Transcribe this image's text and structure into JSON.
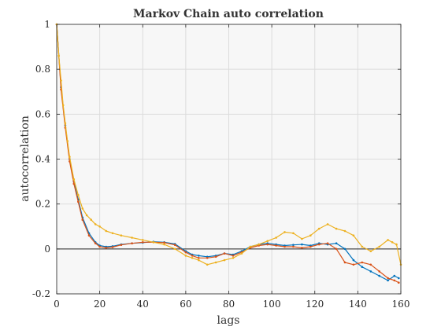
{
  "chart_data": {
    "type": "line",
    "title": "Markov Chain auto correlation",
    "xlabel": "lags",
    "ylabel": "autocorrelation",
    "xlim": [
      0,
      160
    ],
    "ylim": [
      -0.2,
      1
    ],
    "xticks": [
      0,
      20,
      40,
      60,
      80,
      100,
      120,
      140,
      160
    ],
    "yticks": [
      -0.2,
      0,
      0.2,
      0.4,
      0.6,
      0.8,
      1
    ],
    "ytick_labels": [
      "-0.2",
      "0",
      "0.2",
      "0.4",
      "0.6",
      "0.8",
      "1"
    ],
    "grid": true,
    "zero_line": true,
    "series": [
      {
        "color": "#0072BD",
        "x": [
          0,
          2,
          4,
          6,
          8,
          10,
          12,
          15,
          18,
          20,
          23,
          26,
          30,
          35,
          40,
          45,
          50,
          55,
          60,
          63,
          66,
          70,
          74,
          78,
          82,
          86,
          90,
          94,
          98,
          102,
          106,
          110,
          114,
          118,
          122,
          126,
          130,
          134,
          138,
          142,
          146,
          150,
          154,
          157,
          159
        ],
        "y": [
          1,
          0.72,
          0.55,
          0.4,
          0.3,
          0.22,
          0.14,
          0.07,
          0.03,
          0.015,
          0.01,
          0.012,
          0.02,
          0.025,
          0.028,
          0.032,
          0.03,
          0.022,
          -0.01,
          -0.025,
          -0.03,
          -0.035,
          -0.03,
          -0.02,
          -0.025,
          -0.01,
          0.01,
          0.02,
          0.025,
          0.02,
          0.015,
          0.018,
          0.02,
          0.015,
          0.025,
          0.02,
          0.025,
          0.0,
          -0.05,
          -0.08,
          -0.1,
          -0.12,
          -0.14,
          -0.12,
          -0.13
        ]
      },
      {
        "color": "#D95319",
        "x": [
          0,
          2,
          4,
          6,
          8,
          10,
          12,
          15,
          18,
          20,
          23,
          26,
          30,
          35,
          40,
          45,
          50,
          55,
          60,
          63,
          66,
          70,
          74,
          78,
          82,
          86,
          90,
          94,
          98,
          102,
          106,
          110,
          114,
          118,
          122,
          126,
          130,
          134,
          138,
          142,
          146,
          150,
          154,
          157,
          159
        ],
        "y": [
          1,
          0.71,
          0.54,
          0.39,
          0.29,
          0.21,
          0.13,
          0.06,
          0.025,
          0.01,
          0.005,
          0.008,
          0.018,
          0.025,
          0.03,
          0.03,
          0.028,
          0.018,
          -0.015,
          -0.03,
          -0.04,
          -0.04,
          -0.035,
          -0.02,
          -0.03,
          -0.015,
          0.005,
          0.015,
          0.02,
          0.015,
          0.01,
          0.01,
          0.005,
          0.01,
          0.02,
          0.025,
          0.0,
          -0.06,
          -0.07,
          -0.06,
          -0.07,
          -0.1,
          -0.13,
          -0.14,
          -0.15
        ]
      },
      {
        "color": "#EDB120",
        "x": [
          0,
          1,
          2,
          3,
          4,
          5,
          6,
          8,
          10,
          12,
          14,
          16,
          18,
          20,
          23,
          26,
          30,
          35,
          40,
          45,
          50,
          55,
          60,
          63,
          66,
          70,
          74,
          78,
          82,
          86,
          90,
          94,
          98,
          102,
          106,
          110,
          114,
          118,
          122,
          126,
          130,
          134,
          138,
          142,
          146,
          150,
          154,
          156,
          158,
          160
        ],
        "y": [
          1,
          0.86,
          0.75,
          0.64,
          0.56,
          0.48,
          0.41,
          0.31,
          0.24,
          0.18,
          0.15,
          0.13,
          0.11,
          0.1,
          0.08,
          0.07,
          0.06,
          0.05,
          0.04,
          0.03,
          0.02,
          0.0,
          -0.03,
          -0.04,
          -0.05,
          -0.07,
          -0.06,
          -0.05,
          -0.04,
          -0.02,
          0.01,
          0.02,
          0.035,
          0.05,
          0.075,
          0.07,
          0.045,
          0.06,
          0.09,
          0.11,
          0.09,
          0.08,
          0.06,
          0.01,
          -0.01,
          0.01,
          0.04,
          0.03,
          0.02,
          -0.07
        ]
      }
    ]
  }
}
